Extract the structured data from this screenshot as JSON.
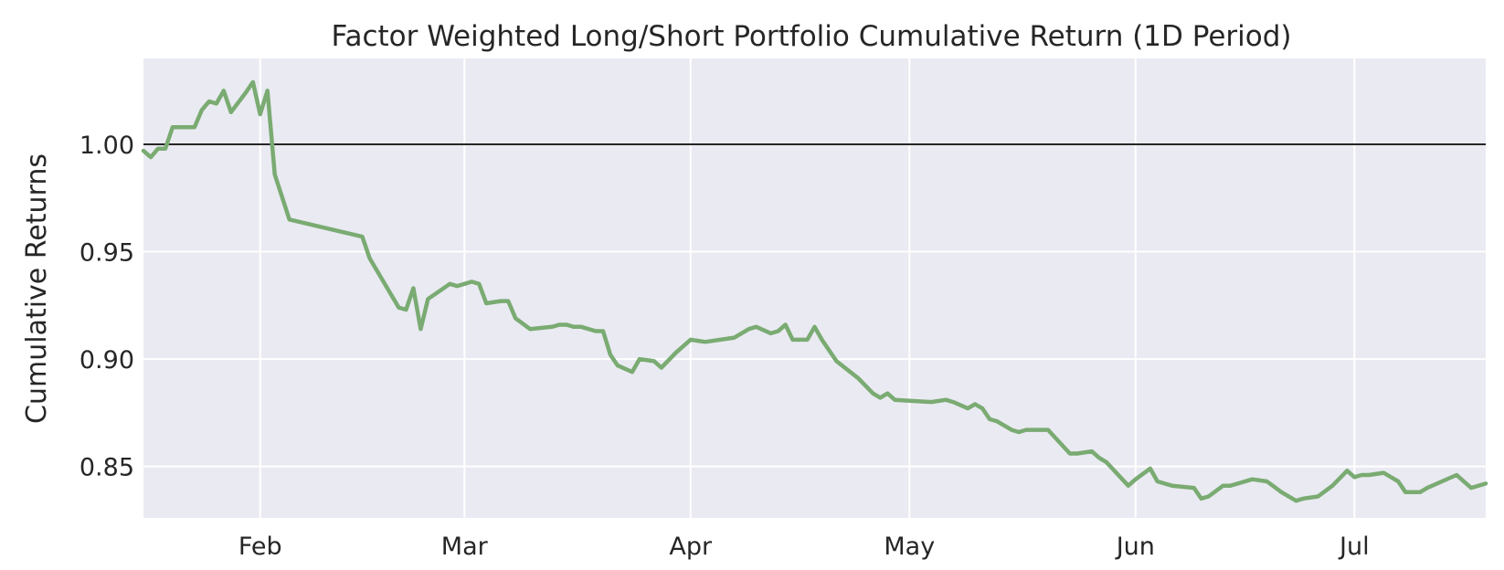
{
  "chart_data": {
    "type": "line",
    "title": "Factor Weighted Long/Short Portfolio Cumulative Return (1D Period)",
    "xlabel": "",
    "ylabel": "Cumulative Returns",
    "x_ticks": [
      "Feb",
      "Mar",
      "Apr",
      "May",
      "Jun",
      "Jul"
    ],
    "x_tick_dates": [
      "2017-02-01",
      "2017-03-01",
      "2017-04-01",
      "2017-05-01",
      "2017-06-01",
      "2017-07-01"
    ],
    "xlim": [
      "2017-01-16",
      "2017-07-19"
    ],
    "y_ticks": [
      0.85,
      0.9,
      0.95,
      1.0
    ],
    "ylim": [
      0.826,
      1.04
    ],
    "grid": true,
    "reference_line": 1.0,
    "series": [
      {
        "color": "#7aab72",
        "points": [
          [
            "2017-01-16",
            0.997
          ],
          [
            "2017-01-17",
            0.994
          ],
          [
            "2017-01-18",
            0.998
          ],
          [
            "2017-01-19",
            0.998
          ],
          [
            "2017-01-20",
            1.008
          ],
          [
            "2017-01-23",
            1.008
          ],
          [
            "2017-01-24",
            1.016
          ],
          [
            "2017-01-25",
            1.02
          ],
          [
            "2017-01-26",
            1.019
          ],
          [
            "2017-01-27",
            1.025
          ],
          [
            "2017-01-28",
            1.015
          ],
          [
            "2017-01-30",
            1.024
          ],
          [
            "2017-01-31",
            1.029
          ],
          [
            "2017-02-01",
            1.014
          ],
          [
            "2017-02-02",
            1.025
          ],
          [
            "2017-02-03",
            0.986
          ],
          [
            "2017-02-05",
            0.965
          ],
          [
            "2017-02-15",
            0.957
          ],
          [
            "2017-02-16",
            0.947
          ],
          [
            "2017-02-20",
            0.924
          ],
          [
            "2017-02-21",
            0.923
          ],
          [
            "2017-02-22",
            0.933
          ],
          [
            "2017-02-23",
            0.914
          ],
          [
            "2017-02-24",
            0.928
          ],
          [
            "2017-02-27",
            0.935
          ],
          [
            "2017-02-28",
            0.934
          ],
          [
            "2017-03-01",
            0.935
          ],
          [
            "2017-03-02",
            0.936
          ],
          [
            "2017-03-03",
            0.935
          ],
          [
            "2017-03-04",
            0.926
          ],
          [
            "2017-03-06",
            0.927
          ],
          [
            "2017-03-07",
            0.927
          ],
          [
            "2017-03-08",
            0.919
          ],
          [
            "2017-03-10",
            0.914
          ],
          [
            "2017-03-13",
            0.915
          ],
          [
            "2017-03-14",
            0.916
          ],
          [
            "2017-03-15",
            0.916
          ],
          [
            "2017-03-16",
            0.915
          ],
          [
            "2017-03-17",
            0.915
          ],
          [
            "2017-03-19",
            0.913
          ],
          [
            "2017-03-20",
            0.913
          ],
          [
            "2017-03-21",
            0.902
          ],
          [
            "2017-03-22",
            0.897
          ],
          [
            "2017-03-24",
            0.894
          ],
          [
            "2017-03-25",
            0.9
          ],
          [
            "2017-03-27",
            0.899
          ],
          [
            "2017-03-28",
            0.896
          ],
          [
            "2017-03-30",
            0.903
          ],
          [
            "2017-04-01",
            0.909
          ],
          [
            "2017-04-03",
            0.908
          ],
          [
            "2017-04-07",
            0.91
          ],
          [
            "2017-04-09",
            0.914
          ],
          [
            "2017-04-10",
            0.915
          ],
          [
            "2017-04-12",
            0.912
          ],
          [
            "2017-04-13",
            0.913
          ],
          [
            "2017-04-14",
            0.916
          ],
          [
            "2017-04-15",
            0.909
          ],
          [
            "2017-04-17",
            0.909
          ],
          [
            "2017-04-18",
            0.915
          ],
          [
            "2017-04-19",
            0.909
          ],
          [
            "2017-04-21",
            0.899
          ],
          [
            "2017-04-24",
            0.891
          ],
          [
            "2017-04-26",
            0.884
          ],
          [
            "2017-04-27",
            0.882
          ],
          [
            "2017-04-28",
            0.884
          ],
          [
            "2017-04-29",
            0.881
          ],
          [
            "2017-05-04",
            0.88
          ],
          [
            "2017-05-06",
            0.881
          ],
          [
            "2017-05-07",
            0.88
          ],
          [
            "2017-05-09",
            0.877
          ],
          [
            "2017-05-10",
            0.879
          ],
          [
            "2017-05-11",
            0.877
          ],
          [
            "2017-05-12",
            0.872
          ],
          [
            "2017-05-13",
            0.871
          ],
          [
            "2017-05-15",
            0.867
          ],
          [
            "2017-05-16",
            0.866
          ],
          [
            "2017-05-17",
            0.867
          ],
          [
            "2017-05-19",
            0.867
          ],
          [
            "2017-05-20",
            0.867
          ],
          [
            "2017-05-23",
            0.856
          ],
          [
            "2017-05-24",
            0.856
          ],
          [
            "2017-05-26",
            0.857
          ],
          [
            "2017-05-27",
            0.854
          ],
          [
            "2017-05-28",
            0.852
          ],
          [
            "2017-05-31",
            0.841
          ],
          [
            "2017-06-01",
            0.844
          ],
          [
            "2017-06-03",
            0.849
          ],
          [
            "2017-06-04",
            0.843
          ],
          [
            "2017-06-05",
            0.842
          ],
          [
            "2017-06-06",
            0.841
          ],
          [
            "2017-06-09",
            0.84
          ],
          [
            "2017-06-10",
            0.835
          ],
          [
            "2017-06-11",
            0.836
          ],
          [
            "2017-06-13",
            0.841
          ],
          [
            "2017-06-14",
            0.841
          ],
          [
            "2017-06-15",
            0.842
          ],
          [
            "2017-06-17",
            0.844
          ],
          [
            "2017-06-19",
            0.843
          ],
          [
            "2017-06-21",
            0.838
          ],
          [
            "2017-06-23",
            0.834
          ],
          [
            "2017-06-24",
            0.835
          ],
          [
            "2017-06-26",
            0.836
          ],
          [
            "2017-06-28",
            0.841
          ],
          [
            "2017-06-30",
            0.848
          ],
          [
            "2017-07-01",
            0.845
          ],
          [
            "2017-07-02",
            0.846
          ],
          [
            "2017-07-03",
            0.846
          ],
          [
            "2017-07-05",
            0.847
          ],
          [
            "2017-07-07",
            0.843
          ],
          [
            "2017-07-08",
            0.838
          ],
          [
            "2017-07-10",
            0.838
          ],
          [
            "2017-07-11",
            0.84
          ],
          [
            "2017-07-13",
            0.843
          ],
          [
            "2017-07-15",
            0.846
          ],
          [
            "2017-07-17",
            0.84
          ],
          [
            "2017-07-19",
            0.842
          ]
        ]
      }
    ]
  }
}
